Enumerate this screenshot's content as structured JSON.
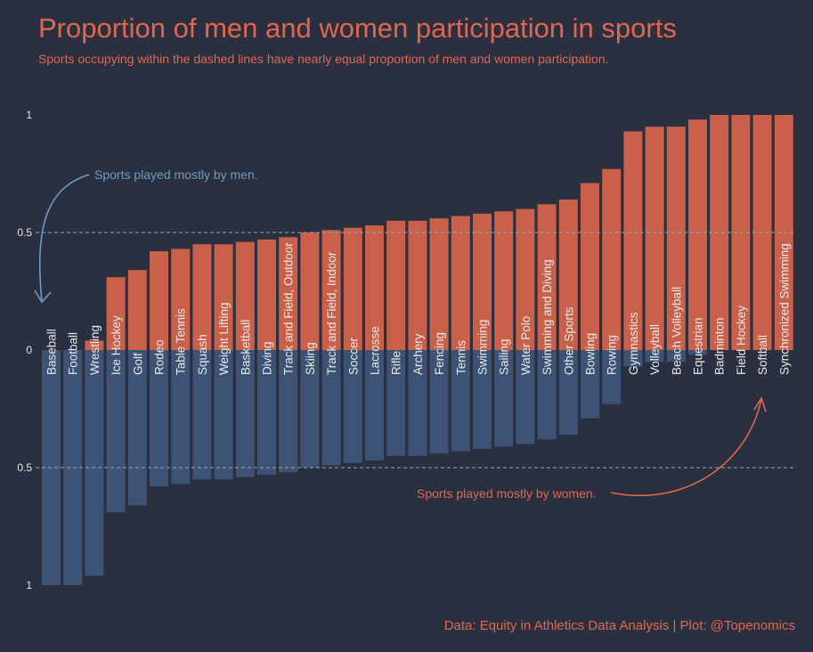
{
  "chart_data": {
    "type": "bar",
    "title": "Proportion of men and women participation in sports",
    "subtitle": "Sports occupying within the dashed lines have nearly equal proportion of men and women participation.",
    "caption": "Data: Equity in Athletics Data Analysis | Plot: @Topenomics",
    "categories": [
      "Baseball",
      "Football",
      "Wrestling",
      "Ice Hockey",
      "Golf",
      "Rodeo",
      "Table Tennis",
      "Squash",
      "Weight Lifting",
      "Basketball",
      "Diving",
      "Track and Field, Outdoor",
      "Skiing",
      "Track and Field, Indoor",
      "Soccer",
      "Lacrosse",
      "Rifle",
      "Archery",
      "Fencing",
      "Tennis",
      "Swimming",
      "Sailing",
      "Water Polo",
      "Swimming and Diving",
      "Other Sports",
      "Bowling",
      "Rowing",
      "Gymnastics",
      "Volleyball",
      "Beach Volleyball",
      "Equestrian",
      "Badminton",
      "Field Hockey",
      "Softball",
      "Synchronized Swimming"
    ],
    "series": [
      {
        "values": [
          0.0,
          0.0,
          0.04,
          0.31,
          0.34,
          0.42,
          0.43,
          0.45,
          0.45,
          0.46,
          0.47,
          0.48,
          0.5,
          0.51,
          0.52,
          0.53,
          0.55,
          0.55,
          0.56,
          0.57,
          0.58,
          0.59,
          0.6,
          0.62,
          0.64,
          0.71,
          0.77,
          0.93,
          0.95,
          0.95,
          0.98,
          1.0,
          1.0,
          1.0,
          1.0
        ]
      },
      {
        "values": [
          1.0,
          1.0,
          0.96,
          0.69,
          0.66,
          0.58,
          0.57,
          0.55,
          0.55,
          0.54,
          0.53,
          0.52,
          0.5,
          0.49,
          0.48,
          0.47,
          0.45,
          0.45,
          0.44,
          0.43,
          0.42,
          0.41,
          0.4,
          0.38,
          0.36,
          0.29,
          0.23,
          0.07,
          0.05,
          0.05,
          0.02,
          0.0,
          0.0,
          0.0,
          0.0
        ]
      }
    ],
    "y_ticks": [
      "1",
      "0.5",
      "0",
      "0.5",
      "1"
    ],
    "reference_lines": [
      0.5,
      -0.5
    ],
    "ylim": [
      -1,
      1
    ],
    "grid": false,
    "annotations": [
      {
        "text": "Sports played mostly by men.",
        "color": "#6f9bc4"
      },
      {
        "text": "Sports played mostly by women.",
        "color": "#e0674f"
      }
    ],
    "colors": {
      "background": "#2a3040",
      "top_bars": "#c9604a",
      "bottom_bars": "#3d5375",
      "title": "#e0674f",
      "tick_labels": "#e8e8e8",
      "dashed_line": "#9aa5b8"
    }
  }
}
